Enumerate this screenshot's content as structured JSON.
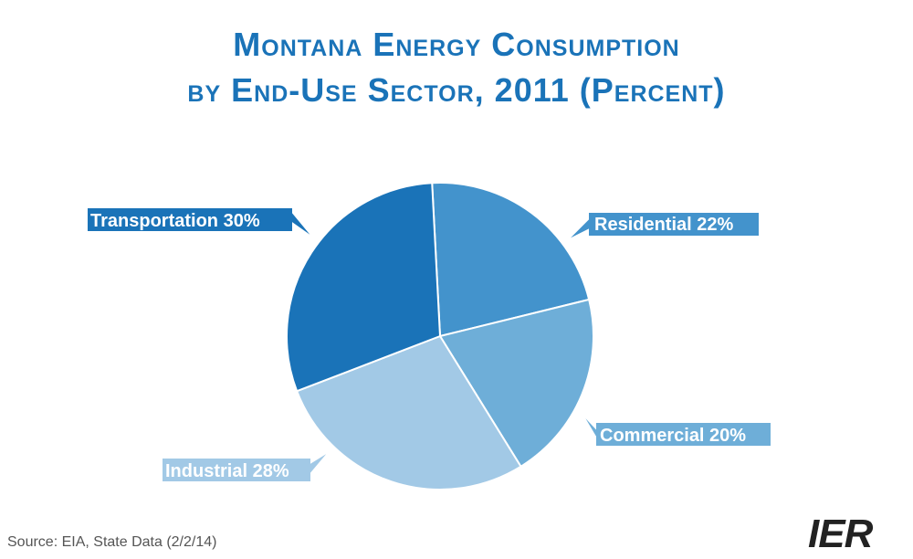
{
  "title_line1": "Montana Energy Consumption",
  "title_line2": "by End-Use Sector, 2011 (Percent)",
  "source": "Source: EIA, State Data (2/2/14)",
  "logo": "IER",
  "colors": {
    "Residential": "#4393cc",
    "Commercial": "#6eaed8",
    "Industrial": "#a2c9e6",
    "Transportation": "#1a73b8"
  },
  "chart_data": {
    "type": "pie",
    "title": "Montana Energy Consumption by End-Use Sector, 2011 (Percent)",
    "categories": [
      "Residential",
      "Commercial",
      "Industrial",
      "Transportation"
    ],
    "values": [
      22,
      20,
      28,
      30
    ],
    "labels": [
      "Residential 22%",
      "Commercial 20%",
      "Industrial 28%",
      "Transportation 30%"
    ]
  }
}
